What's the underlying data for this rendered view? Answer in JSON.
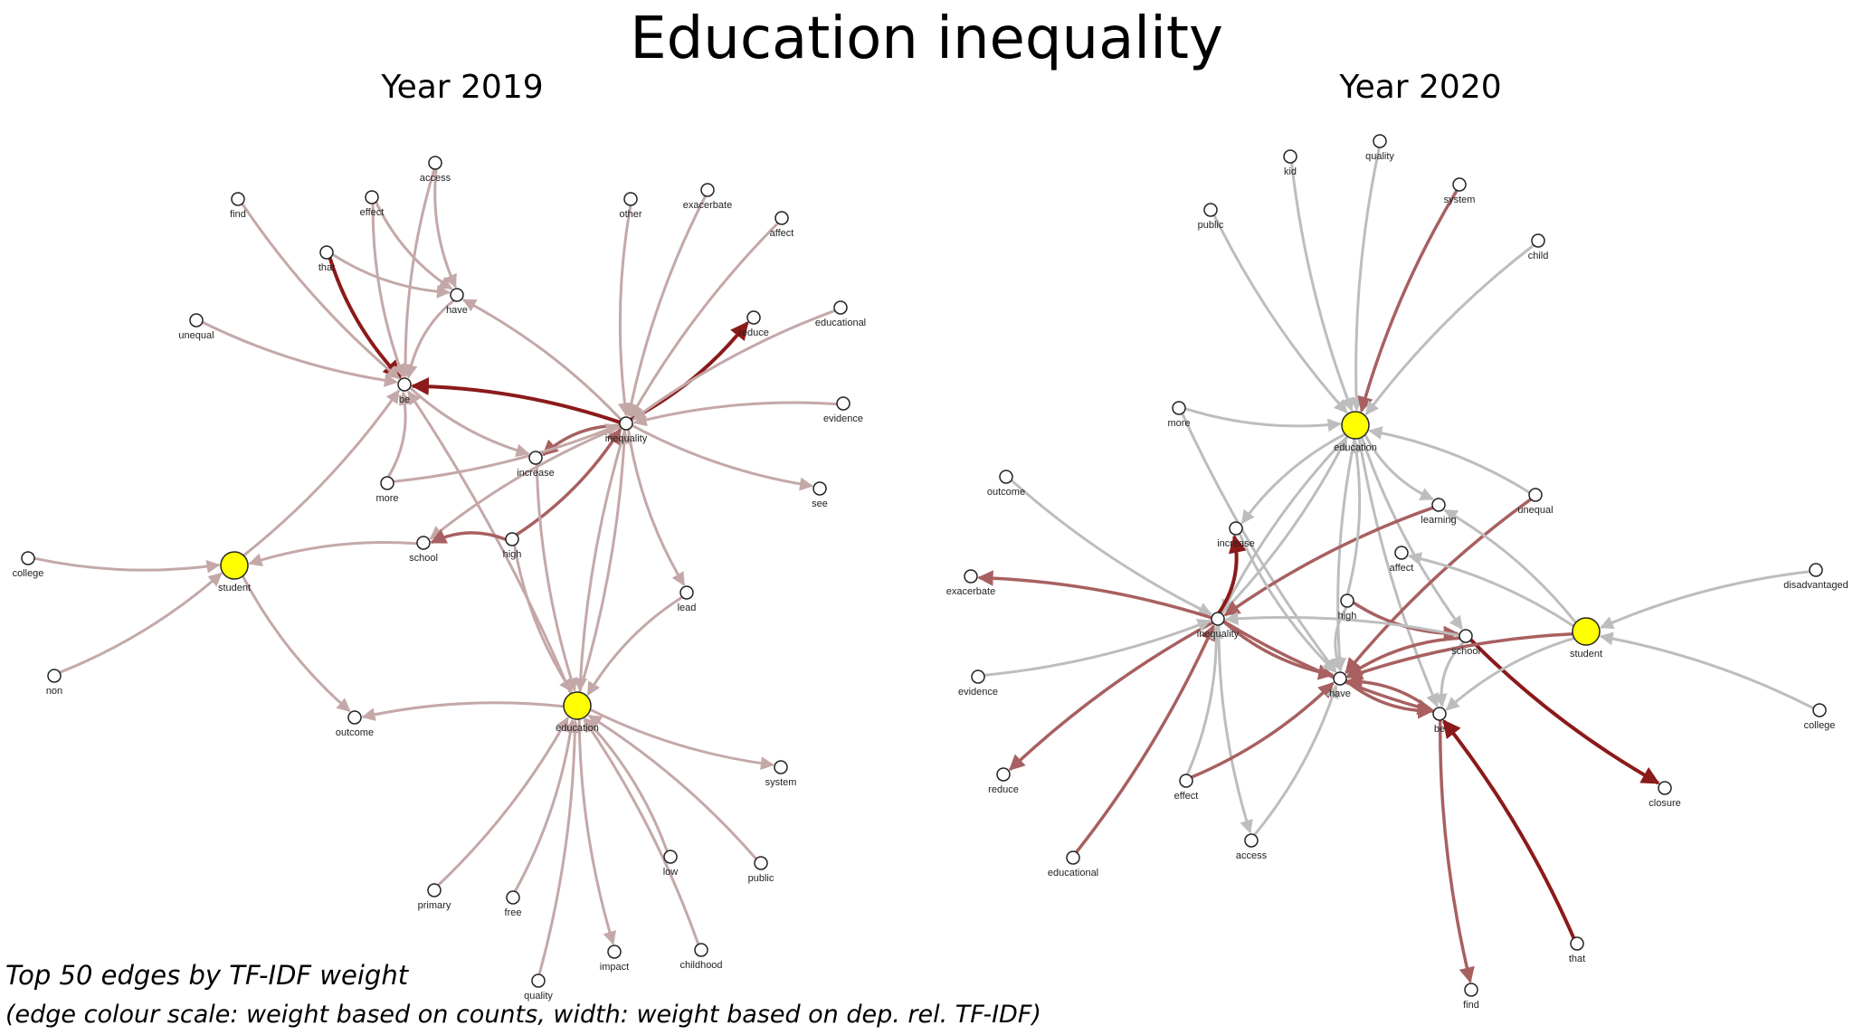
{
  "title": "Education inequality",
  "panels": [
    {
      "title": "Year 2019",
      "nodes": [
        {
          "label": "find",
          "highlight": false
        },
        {
          "label": "effect",
          "highlight": false
        },
        {
          "label": "access",
          "highlight": false
        },
        {
          "label": "that",
          "highlight": false
        },
        {
          "label": "have",
          "highlight": false
        },
        {
          "label": "unequal",
          "highlight": false
        },
        {
          "label": "be",
          "highlight": false
        },
        {
          "label": "other",
          "highlight": false
        },
        {
          "label": "exacerbate",
          "highlight": false
        },
        {
          "label": "affect",
          "highlight": false
        },
        {
          "label": "reduce",
          "highlight": false
        },
        {
          "label": "educational",
          "highlight": false
        },
        {
          "label": "evidence",
          "highlight": false
        },
        {
          "label": "inequality",
          "highlight": false
        },
        {
          "label": "increase",
          "highlight": false
        },
        {
          "label": "more",
          "highlight": false
        },
        {
          "label": "see",
          "highlight": false
        },
        {
          "label": "school",
          "highlight": false
        },
        {
          "label": "high",
          "highlight": false
        },
        {
          "label": "college",
          "highlight": false
        },
        {
          "label": "student",
          "highlight": true
        },
        {
          "label": "lead",
          "highlight": false
        },
        {
          "label": "non",
          "highlight": false
        },
        {
          "label": "education",
          "highlight": true
        },
        {
          "label": "outcome",
          "highlight": false
        },
        {
          "label": "system",
          "highlight": false
        },
        {
          "label": "low",
          "highlight": false
        },
        {
          "label": "public",
          "highlight": false
        },
        {
          "label": "primary",
          "highlight": false
        },
        {
          "label": "free",
          "highlight": false
        },
        {
          "label": "impact",
          "highlight": false
        },
        {
          "label": "childhood",
          "highlight": false
        },
        {
          "label": "quality",
          "highlight": false
        }
      ],
      "edges": [
        {
          "from": "inequality",
          "to": "be",
          "strength": "dark"
        },
        {
          "from": "that",
          "to": "be",
          "strength": "dark"
        },
        {
          "from": "inequality",
          "to": "reduce",
          "strength": "dark"
        },
        {
          "from": "inequality",
          "to": "increase",
          "strength": "medium"
        },
        {
          "from": "inequality",
          "to": "education",
          "strength": "light"
        },
        {
          "from": "education",
          "to": "inequality",
          "strength": "light"
        },
        {
          "from": "education",
          "to": "be",
          "strength": "light"
        },
        {
          "from": "high",
          "to": "education",
          "strength": "light"
        },
        {
          "from": "student",
          "to": "be",
          "strength": "light"
        },
        {
          "from": "school",
          "to": "student",
          "strength": "light"
        },
        {
          "from": "inequality",
          "to": "have",
          "strength": "light"
        },
        {
          "from": "have",
          "to": "be",
          "strength": "light"
        },
        {
          "from": "effect",
          "to": "be",
          "strength": "light"
        },
        {
          "from": "access",
          "to": "be",
          "strength": "light"
        },
        {
          "from": "access",
          "to": "have",
          "strength": "light"
        },
        {
          "from": "effect",
          "to": "have",
          "strength": "light"
        },
        {
          "from": "that",
          "to": "have",
          "strength": "light"
        },
        {
          "from": "find",
          "to": "be",
          "strength": "light"
        },
        {
          "from": "unequal",
          "to": "be",
          "strength": "light"
        },
        {
          "from": "exacerbate",
          "to": "inequality",
          "strength": "light"
        },
        {
          "from": "affect",
          "to": "inequality",
          "strength": "light"
        },
        {
          "from": "other",
          "to": "inequality",
          "strength": "light"
        },
        {
          "from": "educational",
          "to": "inequality",
          "strength": "light"
        },
        {
          "from": "evidence",
          "to": "inequality",
          "strength": "light"
        },
        {
          "from": "inequality",
          "to": "see",
          "strength": "light"
        },
        {
          "from": "inequality",
          "to": "lead",
          "strength": "light"
        },
        {
          "from": "inequality",
          "to": "school",
          "strength": "light"
        },
        {
          "from": "more",
          "to": "inequality",
          "strength": "light"
        },
        {
          "from": "more",
          "to": "be",
          "strength": "light"
        },
        {
          "from": "high",
          "to": "school",
          "strength": "medium"
        },
        {
          "from": "high",
          "to": "inequality",
          "strength": "medium"
        },
        {
          "from": "college",
          "to": "student",
          "strength": "light"
        },
        {
          "from": "non",
          "to": "student",
          "strength": "light"
        },
        {
          "from": "student",
          "to": "outcome",
          "strength": "light"
        },
        {
          "from": "education",
          "to": "outcome",
          "strength": "light"
        },
        {
          "from": "education",
          "to": "system",
          "strength": "light"
        },
        {
          "from": "low",
          "to": "education",
          "strength": "light"
        },
        {
          "from": "public",
          "to": "education",
          "strength": "light"
        },
        {
          "from": "primary",
          "to": "education",
          "strength": "light"
        },
        {
          "from": "free",
          "to": "education",
          "strength": "light"
        },
        {
          "from": "education",
          "to": "impact",
          "strength": "light"
        },
        {
          "from": "childhood",
          "to": "education",
          "strength": "light"
        },
        {
          "from": "quality",
          "to": "education",
          "strength": "light"
        },
        {
          "from": "lead",
          "to": "education",
          "strength": "light"
        },
        {
          "from": "increase",
          "to": "education",
          "strength": "light"
        },
        {
          "from": "be",
          "to": "increase",
          "strength": "light"
        }
      ]
    },
    {
      "title": "Year 2020",
      "nodes": [
        {
          "label": "kid",
          "highlight": false
        },
        {
          "label": "quality",
          "highlight": false
        },
        {
          "label": "system",
          "highlight": false
        },
        {
          "label": "public",
          "highlight": false
        },
        {
          "label": "child",
          "highlight": false
        },
        {
          "label": "more",
          "highlight": false
        },
        {
          "label": "education",
          "highlight": true
        },
        {
          "label": "outcome",
          "highlight": false
        },
        {
          "label": "learning",
          "highlight": false
        },
        {
          "label": "unequal",
          "highlight": false
        },
        {
          "label": "increase",
          "highlight": false
        },
        {
          "label": "affect",
          "highlight": false
        },
        {
          "label": "exacerbate",
          "highlight": false
        },
        {
          "label": "high",
          "highlight": false
        },
        {
          "label": "disadvantaged",
          "highlight": false
        },
        {
          "label": "inequality",
          "highlight": false
        },
        {
          "label": "school",
          "highlight": false
        },
        {
          "label": "student",
          "highlight": true
        },
        {
          "label": "evidence",
          "highlight": false
        },
        {
          "label": "have",
          "highlight": false
        },
        {
          "label": "be",
          "highlight": false
        },
        {
          "label": "college",
          "highlight": false
        },
        {
          "label": "reduce",
          "highlight": false
        },
        {
          "label": "effect",
          "highlight": false
        },
        {
          "label": "closure",
          "highlight": false
        },
        {
          "label": "access",
          "highlight": false
        },
        {
          "label": "educational",
          "highlight": false
        },
        {
          "label": "that",
          "highlight": false
        },
        {
          "label": "find",
          "highlight": false
        }
      ],
      "edges": [
        {
          "from": "kid",
          "to": "education",
          "strength": "light"
        },
        {
          "from": "quality",
          "to": "education",
          "strength": "light"
        },
        {
          "from": "system",
          "to": "education",
          "strength": "medium"
        },
        {
          "from": "public",
          "to": "education",
          "strength": "light"
        },
        {
          "from": "child",
          "to": "education",
          "strength": "light"
        },
        {
          "from": "more",
          "to": "education",
          "strength": "light"
        },
        {
          "from": "more",
          "to": "have",
          "strength": "light"
        },
        {
          "from": "inequality",
          "to": "education",
          "strength": "light"
        },
        {
          "from": "education",
          "to": "inequality",
          "strength": "light"
        },
        {
          "from": "education",
          "to": "increase",
          "strength": "light"
        },
        {
          "from": "education",
          "to": "learning",
          "strength": "light"
        },
        {
          "from": "education",
          "to": "have",
          "strength": "light"
        },
        {
          "from": "education",
          "to": "be",
          "strength": "light"
        },
        {
          "from": "education",
          "to": "school",
          "strength": "light"
        },
        {
          "from": "unequal",
          "to": "education",
          "strength": "light"
        },
        {
          "from": "unequal",
          "to": "have",
          "strength": "medium"
        },
        {
          "from": "outcome",
          "to": "inequality",
          "strength": "light"
        },
        {
          "from": "inequality",
          "to": "increase",
          "strength": "dark"
        },
        {
          "from": "inequality",
          "to": "exacerbate",
          "strength": "medium"
        },
        {
          "from": "inequality",
          "to": "reduce",
          "strength": "medium"
        },
        {
          "from": "learning",
          "to": "inequality",
          "strength": "medium"
        },
        {
          "from": "educational",
          "to": "inequality",
          "strength": "medium"
        },
        {
          "from": "evidence",
          "to": "inequality",
          "strength": "light"
        },
        {
          "from": "inequality",
          "to": "access",
          "strength": "light"
        },
        {
          "from": "effect",
          "to": "inequality",
          "strength": "light"
        },
        {
          "from": "effect",
          "to": "have",
          "strength": "medium"
        },
        {
          "from": "access",
          "to": "have",
          "strength": "light"
        },
        {
          "from": "inequality",
          "to": "have",
          "strength": "medium"
        },
        {
          "from": "inequality",
          "to": "be",
          "strength": "medium"
        },
        {
          "from": "high",
          "to": "school",
          "strength": "medium"
        },
        {
          "from": "high",
          "to": "have",
          "strength": "light"
        },
        {
          "from": "high",
          "to": "education",
          "strength": "light"
        },
        {
          "from": "school",
          "to": "inequality",
          "strength": "light"
        },
        {
          "from": "school",
          "to": "have",
          "strength": "medium"
        },
        {
          "from": "school",
          "to": "be",
          "strength": "light"
        },
        {
          "from": "school",
          "to": "closure",
          "strength": "dark"
        },
        {
          "from": "student",
          "to": "affect",
          "strength": "light"
        },
        {
          "from": "student",
          "to": "learning",
          "strength": "light"
        },
        {
          "from": "student",
          "to": "have",
          "strength": "medium"
        },
        {
          "from": "student",
          "to": "be",
          "strength": "light"
        },
        {
          "from": "disadvantaged",
          "to": "student",
          "strength": "light"
        },
        {
          "from": "college",
          "to": "student",
          "strength": "light"
        },
        {
          "from": "that",
          "to": "be",
          "strength": "dark"
        },
        {
          "from": "be",
          "to": "find",
          "strength": "medium"
        },
        {
          "from": "have",
          "to": "be",
          "strength": "medium"
        },
        {
          "from": "be",
          "to": "have",
          "strength": "medium"
        },
        {
          "from": "increase",
          "to": "have",
          "strength": "light"
        }
      ]
    }
  ],
  "caption_line1": "Top 50 edges by TF-IDF weight",
  "caption_line2": "(edge colour scale: weight based on counts, width: weight based on dep. rel. TF-IDF)",
  "colors": {
    "dark": "#8b1a1a",
    "medium": "#a86060",
    "light": "#c4a8a8",
    "grey": "#bdbdbd",
    "highlight": "#ffff00"
  }
}
